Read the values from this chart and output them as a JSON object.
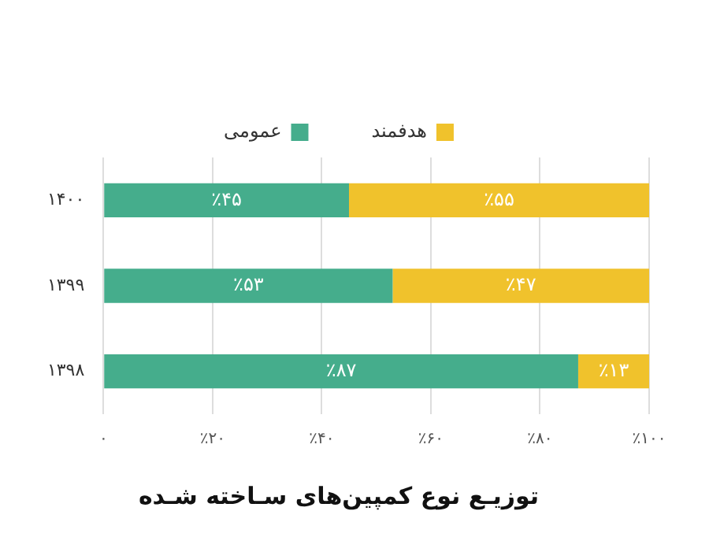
{
  "chart_data": {
    "type": "bar",
    "orientation": "horizontal",
    "stacked": true,
    "title": "توزیـع نوع کمپین‌های سـاخته شـده",
    "categories": [
      "۱۴۰۰",
      "۱۳۹۹",
      "۱۳۹۸"
    ],
    "series": [
      {
        "name": "عمومی",
        "color": "#45ad8c",
        "values": [
          45,
          53,
          87
        ],
        "value_labels": [
          "٪۴۵",
          "٪۵۳",
          "٪۸۷"
        ]
      },
      {
        "name": "هدفمند",
        "color": "#f0c22c",
        "values": [
          55,
          47,
          13
        ],
        "value_labels": [
          "٪۵۵",
          "٪۴۷",
          "٪۱۳"
        ]
      }
    ],
    "xlim": [
      0,
      100
    ],
    "xticks": [
      {
        "value": 0,
        "label": "۰"
      },
      {
        "value": 20,
        "label": "٪۲۰"
      },
      {
        "value": 40,
        "label": "٪۴۰"
      },
      {
        "value": 60,
        "label": "٪۶۰"
      },
      {
        "value": 80,
        "label": "٪۸۰"
      },
      {
        "value": 100,
        "label": "٪۱۰۰"
      }
    ],
    "grid": "x",
    "legend": "top"
  }
}
